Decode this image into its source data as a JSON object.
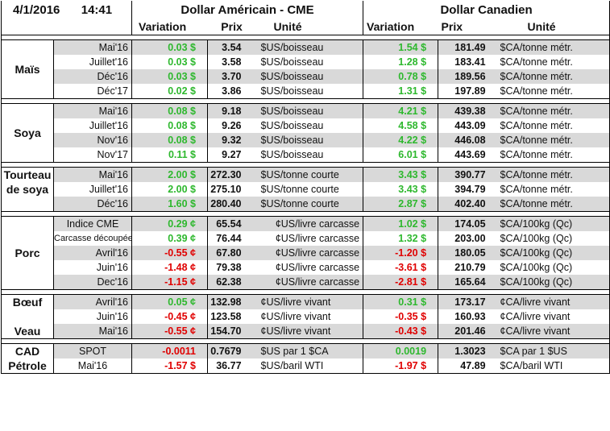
{
  "header": {
    "date": "4/1/2016",
    "time": "14:41",
    "us_group": "Dollar Américain - CME",
    "ca_group": "Dollar Canadien",
    "col_variation": "Variation",
    "col_prix": "Prix",
    "col_unite": "Unité"
  },
  "colors": {
    "positive": "#2eb82e",
    "negative": "#e00000",
    "row_gray": "#d9d9d9"
  },
  "groups": [
    {
      "name": "Maïs",
      "rows": [
        {
          "contract": "Mai'16",
          "us_var": "0.03 $",
          "us_price": "3.54",
          "us_unit": "$US/boisseau",
          "ca_var": "1.54 $",
          "ca_price": "181.49",
          "ca_unit": "$CA/tonne métr."
        },
        {
          "contract": "Juillet'16",
          "us_var": "0.03 $",
          "us_price": "3.58",
          "us_unit": "$US/boisseau",
          "ca_var": "1.28 $",
          "ca_price": "183.41",
          "ca_unit": "$CA/tonne métr."
        },
        {
          "contract": "Déc'16",
          "us_var": "0.03 $",
          "us_price": "3.70",
          "us_unit": "$US/boisseau",
          "ca_var": "0.78 $",
          "ca_price": "189.56",
          "ca_unit": "$CA/tonne métr."
        },
        {
          "contract": "Déc'17",
          "us_var": "0.02 $",
          "us_price": "3.86",
          "us_unit": "$US/boisseau",
          "ca_var": "1.31 $",
          "ca_price": "197.89",
          "ca_unit": "$CA/tonne métr."
        }
      ]
    },
    {
      "name": "Soya",
      "rows": [
        {
          "contract": "Mai'16",
          "us_var": "0.08 $",
          "us_price": "9.18",
          "us_unit": "$US/boisseau",
          "ca_var": "4.21 $",
          "ca_price": "439.38",
          "ca_unit": "$CA/tonne métr."
        },
        {
          "contract": "Juillet'16",
          "us_var": "0.08 $",
          "us_price": "9.26",
          "us_unit": "$US/boisseau",
          "ca_var": "4.58 $",
          "ca_price": "443.09",
          "ca_unit": "$CA/tonne métr."
        },
        {
          "contract": "Nov'16",
          "us_var": "0.08 $",
          "us_price": "9.32",
          "us_unit": "$US/boisseau",
          "ca_var": "4.22 $",
          "ca_price": "446.08",
          "ca_unit": "$CA/tonne métr."
        },
        {
          "contract": "Nov'17",
          "us_var": "0.11 $",
          "us_price": "9.27",
          "us_unit": "$US/boisseau",
          "ca_var": "6.01 $",
          "ca_price": "443.69",
          "ca_unit": "$CA/tonne métr."
        }
      ]
    },
    {
      "name": "Tourteau de soya",
      "name_line1": "Tourteau",
      "name_line2": "de soya",
      "rows": [
        {
          "contract": "Mai'16",
          "us_var": "2.00 $",
          "us_price": "272.30",
          "us_unit": "$US/tonne courte",
          "ca_var": "3.43 $",
          "ca_price": "390.77",
          "ca_unit": "$CA/tonne métr."
        },
        {
          "contract": "Juillet'16",
          "us_var": "2.00 $",
          "us_price": "275.10",
          "us_unit": "$US/tonne courte",
          "ca_var": "3.43 $",
          "ca_price": "394.79",
          "ca_unit": "$CA/tonne métr."
        },
        {
          "contract": "Déc'16",
          "us_var": "1.60 $",
          "us_price": "280.40",
          "us_unit": "$US/tonne courte",
          "ca_var": "2.87 $",
          "ca_price": "402.40",
          "ca_unit": "$CA/tonne métr."
        }
      ]
    },
    {
      "name": "Porc",
      "rows": [
        {
          "contract": "Indice CME",
          "us_var": "0.29 ¢",
          "us_price": "65.54",
          "us_unit": "¢US/livre carcasse",
          "ca_var": "1.02 $",
          "ca_price": "174.05",
          "ca_unit": "$CA/100kg (Qc)"
        },
        {
          "contract": "Carcasse découpée",
          "us_var": "0.39 ¢",
          "us_price": "76.44",
          "us_unit": "¢US/livre carcasse",
          "ca_var": "1.32 $",
          "ca_price": "203.00",
          "ca_unit": "$CA/100kg (Qc)"
        },
        {
          "contract": "Avril'16",
          "us_var": "-0.55 ¢",
          "us_price": "67.80",
          "us_unit": "¢US/livre carcasse",
          "ca_var": "-1.20 $",
          "ca_price": "180.05",
          "ca_unit": "$CA/100kg (Qc)"
        },
        {
          "contract": "Juin'16",
          "us_var": "-1.48 ¢",
          "us_price": "79.38",
          "us_unit": "¢US/livre carcasse",
          "ca_var": "-3.61 $",
          "ca_price": "210.79",
          "ca_unit": "$CA/100kg (Qc)"
        },
        {
          "contract": "Dec'16",
          "us_var": "-1.15 ¢",
          "us_price": "62.38",
          "us_unit": "¢US/livre carcasse",
          "ca_var": "-2.81 $",
          "ca_price": "165.64",
          "ca_unit": "$CA/100kg (Qc)"
        }
      ]
    },
    {
      "name": "Bœuf",
      "name2": "Veau",
      "rows": [
        {
          "contract": "Avril'16",
          "us_var": "0.05 ¢",
          "us_price": "132.98",
          "us_unit": "¢US/livre vivant",
          "ca_var": "0.31 $",
          "ca_price": "173.17",
          "ca_unit": "¢CA/livre vivant"
        },
        {
          "contract": "Juin'16",
          "us_var": "-0.45 ¢",
          "us_price": "123.58",
          "us_unit": "¢US/livre vivant",
          "ca_var": "-0.35 $",
          "ca_price": "160.93",
          "ca_unit": "¢CA/livre vivant"
        },
        {
          "contract": "Mai'16",
          "us_var": "-0.55 ¢",
          "us_price": "154.70",
          "us_unit": "¢US/livre vivant",
          "ca_var": "-0.43 $",
          "ca_price": "201.46",
          "ca_unit": "¢CA/livre vivant"
        }
      ]
    },
    {
      "name": "CAD",
      "name2": "Pétrole",
      "rows": [
        {
          "contract": "SPOT",
          "us_var": "-0.0011",
          "us_price": "0.7679",
          "us_unit": "$US par 1 $CA",
          "ca_var": "0.0019",
          "ca_price": "1.3023",
          "ca_unit": "$CA par 1 $US"
        },
        {
          "contract": "Mai'16",
          "us_var": "-1.57 $",
          "us_price": "36.77",
          "us_unit": "$US/baril WTI",
          "ca_var": "-1.97 $",
          "ca_price": "47.89",
          "ca_unit": "$CA/baril WTI"
        }
      ]
    }
  ]
}
